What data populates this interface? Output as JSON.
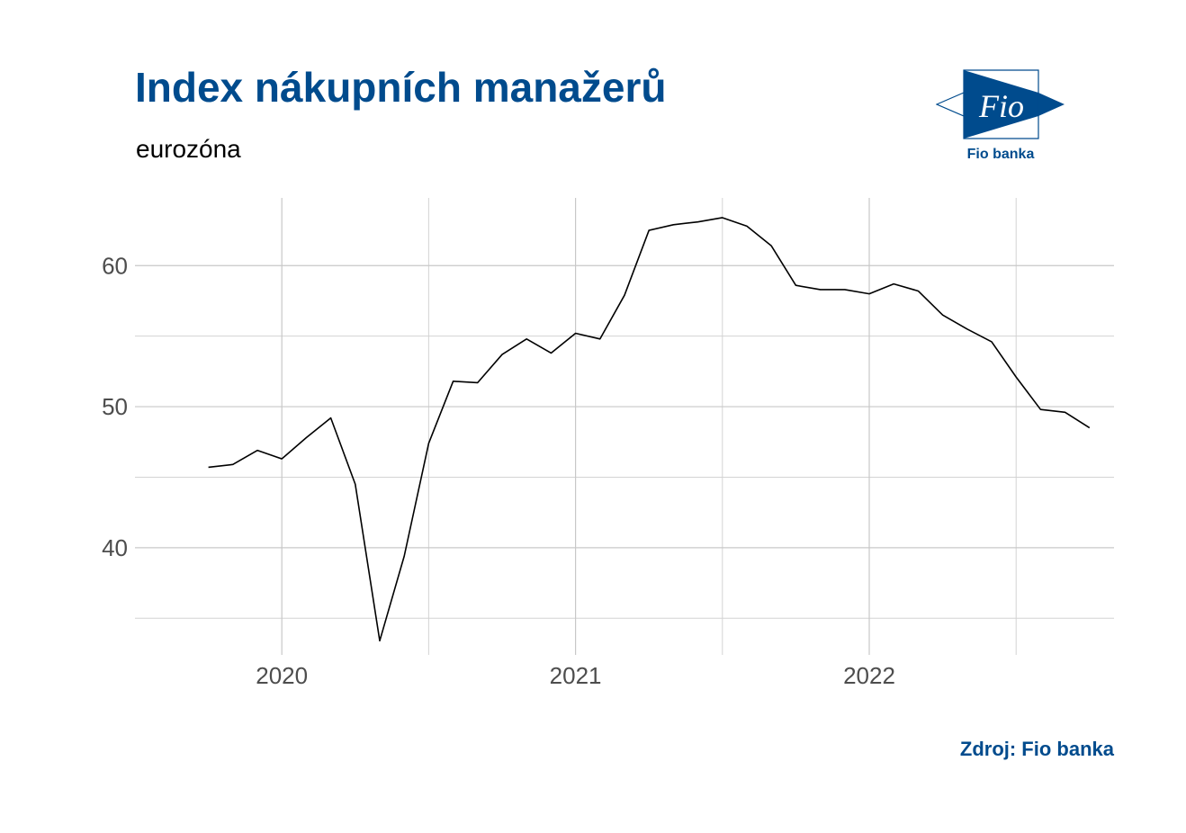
{
  "header": {
    "title": "Index nákupních manažerů",
    "subtitle": "eurozóna"
  },
  "footer": {
    "source": "Zdroj: Fio banka"
  },
  "logo": {
    "wordmark": "Fio",
    "caption": "Fio banka",
    "icon": "fio-banka-logo-icon",
    "color": "#004b8d"
  },
  "chart_data": {
    "type": "line",
    "title": "Index nákupních manažerů",
    "subtitle": "eurozóna",
    "xlabel": "",
    "ylabel": "",
    "x_ticks": [
      "2020",
      "2021",
      "2022"
    ],
    "y_ticks": [
      40,
      50,
      60
    ],
    "xlim": [
      "2019-07-01",
      "2022-11-01"
    ],
    "ylim": [
      32.4,
      64.8
    ],
    "grid": true,
    "line_color": "#000000",
    "series": [
      {
        "x": [
          "2019-10-01",
          "2019-11-01",
          "2019-12-01",
          "2020-01-01",
          "2020-02-01",
          "2020-03-01",
          "2020-04-01",
          "2020-05-01",
          "2020-06-01",
          "2020-07-01",
          "2020-08-01",
          "2020-09-01",
          "2020-10-01",
          "2020-11-01",
          "2020-12-01",
          "2021-01-01",
          "2021-02-01",
          "2021-03-01",
          "2021-04-01",
          "2021-05-01",
          "2021-06-01",
          "2021-07-01",
          "2021-08-01",
          "2021-09-01",
          "2021-10-01",
          "2021-11-01",
          "2021-12-01",
          "2022-01-01",
          "2022-02-01",
          "2022-03-01",
          "2022-04-01",
          "2022-05-01",
          "2022-06-01",
          "2022-07-01",
          "2022-08-01",
          "2022-09-01",
          "2022-10-01"
        ],
        "values": [
          45.7,
          45.9,
          46.9,
          46.3,
          47.8,
          49.2,
          44.5,
          33.4,
          39.4,
          47.4,
          51.8,
          51.7,
          53.7,
          54.8,
          53.8,
          55.2,
          54.8,
          57.9,
          62.5,
          62.9,
          63.1,
          63.4,
          62.8,
          61.4,
          58.6,
          58.3,
          58.3,
          58.0,
          58.7,
          58.2,
          56.5,
          55.5,
          54.6,
          52.1,
          49.8,
          49.6,
          48.5
        ]
      }
    ]
  }
}
